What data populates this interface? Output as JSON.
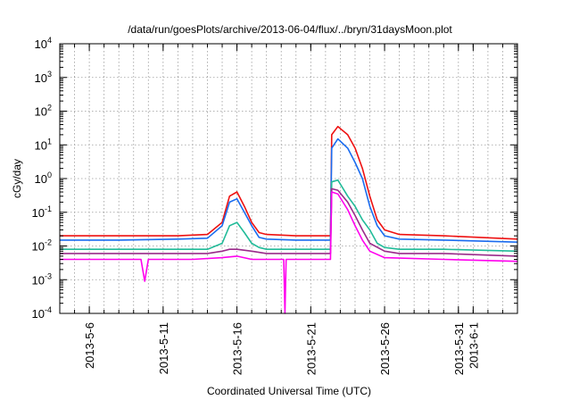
{
  "chart_data": {
    "type": "line",
    "title": "/data/run/goesPlots/archive/2013-06-04/flux/../bryn/31daysMoon.plot",
    "xlabel": "Coordinated Universal Time (UTC)",
    "ylabel": "cGy/day",
    "yscale": "log",
    "ylim": [
      0.0001,
      10000
    ],
    "xlim": [
      "2013-05-04",
      "2013-06-04"
    ],
    "y_ticks": [
      {
        "value": 0.0001,
        "base": "10",
        "exp": "-4"
      },
      {
        "value": 0.001,
        "base": "10",
        "exp": "-3"
      },
      {
        "value": 0.01,
        "base": "10",
        "exp": "-2"
      },
      {
        "value": 0.1,
        "base": "10",
        "exp": "-1"
      },
      {
        "value": 1,
        "base": "10",
        "exp": "0"
      },
      {
        "value": 10,
        "base": "10",
        "exp": "1"
      },
      {
        "value": 100,
        "base": "10",
        "exp": "2"
      },
      {
        "value": 1000,
        "base": "10",
        "exp": "3"
      },
      {
        "value": 10000,
        "base": "10",
        "exp": "4"
      }
    ],
    "x_ticks": [
      {
        "date": "2013-05-06",
        "label": "2013-5-6"
      },
      {
        "date": "2013-05-11",
        "label": "2013-5-11"
      },
      {
        "date": "2013-05-16",
        "label": "2013-5-16"
      },
      {
        "date": "2013-05-21",
        "label": "2013-5-21"
      },
      {
        "date": "2013-05-26",
        "label": "2013-5-26"
      },
      {
        "date": "2013-05-31",
        "label": "2013-5-31"
      },
      {
        "date": "2013-06-01",
        "label": "2013-6-1"
      }
    ],
    "grid": true,
    "series": [
      {
        "color": "#ee1111",
        "points": [
          [
            "2013-05-04",
            0.02
          ],
          [
            "2013-05-08",
            0.02
          ],
          [
            "2013-05-12",
            0.02
          ],
          [
            "2013-05-14",
            0.022
          ],
          [
            "2013-05-15",
            0.05
          ],
          [
            "2013-05-15 12:00",
            0.3
          ],
          [
            "2013-05-16",
            0.4
          ],
          [
            "2013-05-16 12:00",
            0.15
          ],
          [
            "2013-05-17",
            0.05
          ],
          [
            "2013-05-17 12:00",
            0.025
          ],
          [
            "2013-05-18",
            0.022
          ],
          [
            "2013-05-20",
            0.02
          ],
          [
            "2013-05-22 08:00",
            0.02
          ],
          [
            "2013-05-22 10:00",
            20
          ],
          [
            "2013-05-22 20:00",
            35
          ],
          [
            "2013-05-23 12:00",
            20
          ],
          [
            "2013-05-24",
            8
          ],
          [
            "2013-05-24 12:00",
            2
          ],
          [
            "2013-05-25",
            0.3
          ],
          [
            "2013-05-25 12:00",
            0.06
          ],
          [
            "2013-05-26",
            0.03
          ],
          [
            "2013-05-27",
            0.022
          ],
          [
            "2013-05-30",
            0.02
          ],
          [
            "2013-06-04",
            0.016
          ]
        ]
      },
      {
        "color": "#1a6cf0",
        "points": [
          [
            "2013-05-04",
            0.015
          ],
          [
            "2013-05-08",
            0.015
          ],
          [
            "2013-05-12",
            0.016
          ],
          [
            "2013-05-14",
            0.017
          ],
          [
            "2013-05-15",
            0.04
          ],
          [
            "2013-05-15 12:00",
            0.2
          ],
          [
            "2013-05-16",
            0.25
          ],
          [
            "2013-05-16 12:00",
            0.1
          ],
          [
            "2013-05-17",
            0.04
          ],
          [
            "2013-05-17 12:00",
            0.018
          ],
          [
            "2013-05-18",
            0.016
          ],
          [
            "2013-05-20",
            0.015
          ],
          [
            "2013-05-22 08:00",
            0.015
          ],
          [
            "2013-05-22 10:00",
            8
          ],
          [
            "2013-05-22 20:00",
            15
          ],
          [
            "2013-05-23 12:00",
            8
          ],
          [
            "2013-05-24",
            3
          ],
          [
            "2013-05-24 12:00",
            1
          ],
          [
            "2013-05-25",
            0.15
          ],
          [
            "2013-05-25 12:00",
            0.04
          ],
          [
            "2013-05-26",
            0.02
          ],
          [
            "2013-05-27",
            0.016
          ],
          [
            "2013-05-30",
            0.015
          ],
          [
            "2013-06-04",
            0.013
          ]
        ]
      },
      {
        "color": "#22bb99",
        "points": [
          [
            "2013-05-04",
            0.008
          ],
          [
            "2013-05-08",
            0.008
          ],
          [
            "2013-05-12",
            0.008
          ],
          [
            "2013-05-14",
            0.008
          ],
          [
            "2013-05-15",
            0.012
          ],
          [
            "2013-05-15 12:00",
            0.04
          ],
          [
            "2013-05-16",
            0.05
          ],
          [
            "2013-05-16 12:00",
            0.025
          ],
          [
            "2013-05-17",
            0.012
          ],
          [
            "2013-05-17 12:00",
            0.009
          ],
          [
            "2013-05-18",
            0.008
          ],
          [
            "2013-05-20",
            0.008
          ],
          [
            "2013-05-22 08:00",
            0.008
          ],
          [
            "2013-05-22 10:00",
            0.8
          ],
          [
            "2013-05-22 20:00",
            0.9
          ],
          [
            "2013-05-23 12:00",
            0.3
          ],
          [
            "2013-05-24",
            0.15
          ],
          [
            "2013-05-24 12:00",
            0.06
          ],
          [
            "2013-05-25",
            0.03
          ],
          [
            "2013-05-25 12:00",
            0.012
          ],
          [
            "2013-05-26",
            0.009
          ],
          [
            "2013-05-27",
            0.008
          ],
          [
            "2013-05-30",
            0.008
          ],
          [
            "2013-06-04",
            0.007
          ]
        ]
      },
      {
        "color": "#9a2a8a",
        "points": [
          [
            "2013-05-04",
            0.006
          ],
          [
            "2013-05-08",
            0.006
          ],
          [
            "2013-05-12",
            0.006
          ],
          [
            "2013-05-14",
            0.006
          ],
          [
            "2013-05-15",
            0.007
          ],
          [
            "2013-05-15 12:00",
            0.008
          ],
          [
            "2013-05-16",
            0.008
          ],
          [
            "2013-05-17",
            0.007
          ],
          [
            "2013-05-18",
            0.006
          ],
          [
            "2013-05-20",
            0.006
          ],
          [
            "2013-05-22 08:00",
            0.006
          ],
          [
            "2013-05-22 10:00",
            0.5
          ],
          [
            "2013-05-22 20:00",
            0.45
          ],
          [
            "2013-05-23 12:00",
            0.2
          ],
          [
            "2013-05-24",
            0.08
          ],
          [
            "2013-05-24 12:00",
            0.03
          ],
          [
            "2013-05-25",
            0.012
          ],
          [
            "2013-05-26",
            0.007
          ],
          [
            "2013-05-27",
            0.006
          ],
          [
            "2013-05-30",
            0.006
          ],
          [
            "2013-06-04",
            0.005
          ]
        ]
      },
      {
        "color": "#ff00ee",
        "points": [
          [
            "2013-05-04",
            0.004
          ],
          [
            "2013-05-07",
            0.004
          ],
          [
            "2013-05-09 12:00",
            0.004
          ],
          [
            "2013-05-09 18:00",
            0.0009
          ],
          [
            "2013-05-10",
            0.004
          ],
          [
            "2013-05-13",
            0.004
          ],
          [
            "2013-05-15",
            0.0045
          ],
          [
            "2013-05-16",
            0.005
          ],
          [
            "2013-05-17",
            0.004
          ],
          [
            "2013-05-19 04:00",
            0.004
          ],
          [
            "2013-05-19 06:00",
            0.0001
          ],
          [
            "2013-05-19 08:00",
            0.004
          ],
          [
            "2013-05-22 08:00",
            0.004
          ],
          [
            "2013-05-22 10:00",
            0.4
          ],
          [
            "2013-05-22 20:00",
            0.35
          ],
          [
            "2013-05-23 12:00",
            0.12
          ],
          [
            "2013-05-24",
            0.04
          ],
          [
            "2013-05-24 12:00",
            0.015
          ],
          [
            "2013-05-25",
            0.007
          ],
          [
            "2013-05-26",
            0.0045
          ],
          [
            "2013-05-30",
            0.004
          ],
          [
            "2013-06-04",
            0.0035
          ]
        ]
      }
    ]
  }
}
